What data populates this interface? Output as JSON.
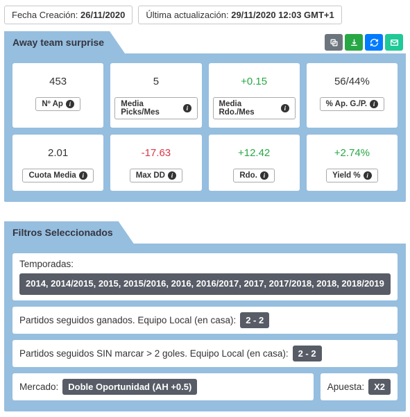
{
  "meta": {
    "creation_label": "Fecha Creación:",
    "creation_value": "26/11/2020",
    "update_label": "Última actualización:",
    "update_value": "29/11/2020 12:03 GMT+1"
  },
  "panel1": {
    "title": "Away team surprise",
    "actions": {
      "copy": "copy-icon",
      "download": "download-icon",
      "refresh": "refresh-icon",
      "mail": "mail-icon"
    },
    "action_colors": {
      "copy": "#6c757d",
      "download": "#28a745",
      "refresh": "#007bff",
      "mail": "#20c997"
    }
  },
  "stats": [
    {
      "value": "453",
      "label": "Nº Ap",
      "color": "normal"
    },
    {
      "value": "5",
      "label": "Media Picks/Mes",
      "color": "normal"
    },
    {
      "value": "+0.15",
      "label": "Media Rdo./Mes",
      "color": "pos"
    },
    {
      "value": "56/44%",
      "label": "% Ap. G./P.",
      "color": "normal"
    },
    {
      "value": "2.01",
      "label": "Cuota Media",
      "color": "normal"
    },
    {
      "value": "-17.63",
      "label": "Max DD",
      "color": "neg"
    },
    {
      "value": "+12.42",
      "label": "Rdo.",
      "color": "pos"
    },
    {
      "value": "+2.74%",
      "label": "Yield %",
      "color": "pos"
    }
  ],
  "panel2": {
    "title": "Filtros Seleccionados"
  },
  "filters": {
    "seasons_label": "Temporadas:",
    "seasons_value": "2014, 2014/2015, 2015, 2015/2016, 2016, 2016/2017, 2017, 2017/2018, 2018, 2018/2019",
    "f1_label": "Partidos seguidos ganados. Equipo Local (en casa):",
    "f1_value": "2 - 2",
    "f2_label": "Partidos seguidos SIN marcar > 2 goles. Equipo Local (en casa):",
    "f2_value": "2 - 2",
    "mercado_label": "Mercado:",
    "mercado_value": "Doble Oportunidad (AH +0.5)",
    "apuesta_label": "Apuesta:",
    "apuesta_value": "X2"
  },
  "colors": {
    "panel_bg": "#96bedf",
    "chip_bg": "#575c66",
    "positive": "#28a745",
    "negative": "#dc3545",
    "text": "#333333",
    "card_bg": "#ffffff"
  }
}
